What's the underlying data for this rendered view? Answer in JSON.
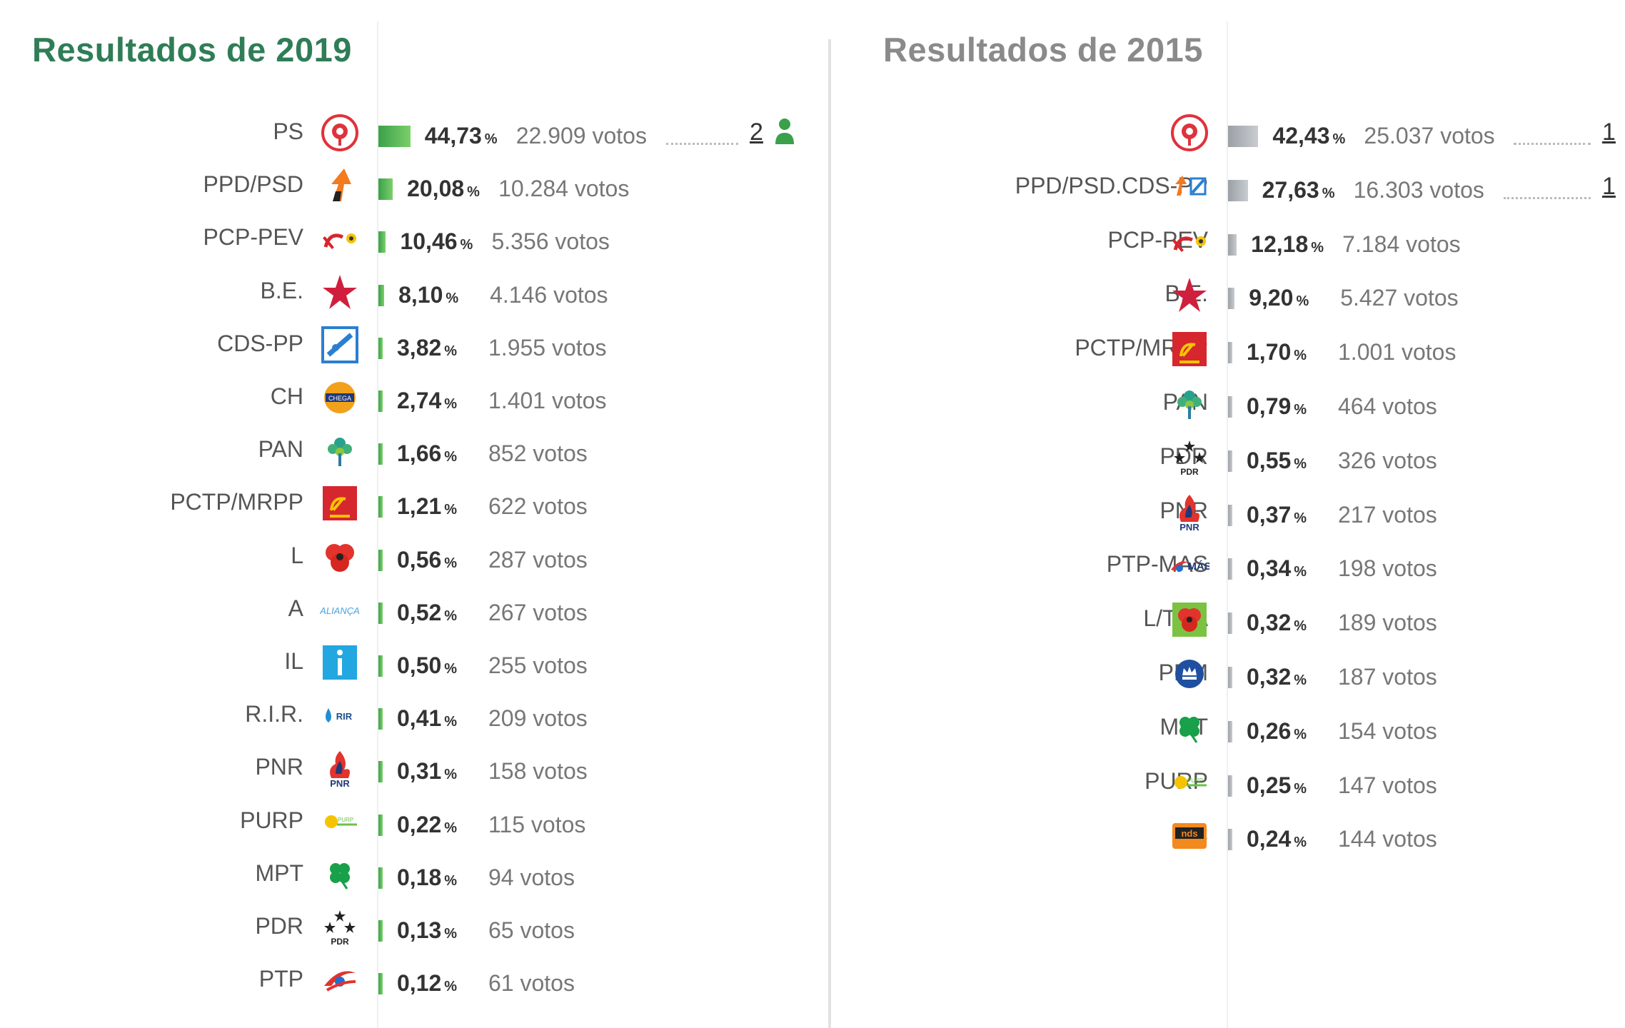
{
  "results_2019": {
    "title": "Resultados de 2019",
    "rows": [
      {
        "party": "PS",
        "pct": "44,73",
        "votes": "22.909 votos",
        "seats": "2",
        "share": 44.73,
        "logo": "ps-rose-icon"
      },
      {
        "party": "PPD/PSD",
        "pct": "20,08",
        "votes": "10.284 votos",
        "share": 20.08,
        "logo": "psd-arrow-icon"
      },
      {
        "party": "PCP-PEV",
        "pct": "10,46",
        "votes": "5.356 votos",
        "share": 10.46,
        "logo": "hammer-sickle-sunflower-icon"
      },
      {
        "party": "B.E.",
        "pct": "8,10",
        "votes": "4.146 votos",
        "share": 8.1,
        "logo": "red-star-icon"
      },
      {
        "party": "CDS-PP",
        "pct": "3,82",
        "votes": "1.955 votos",
        "share": 3.82,
        "logo": "cds-square-icon"
      },
      {
        "party": "CH",
        "pct": "2,74",
        "votes": "1.401 votos",
        "share": 2.74,
        "logo": "chega-badge-icon"
      },
      {
        "party": "PAN",
        "pct": "1,66",
        "votes": "852 votos",
        "share": 1.66,
        "logo": "tree-icon"
      },
      {
        "party": "PCTP/MRPP",
        "pct": "1,21",
        "votes": "622 votos",
        "share": 1.21,
        "logo": "red-square-hammer-sickle-icon"
      },
      {
        "party": "L",
        "pct": "0,56",
        "votes": "287 votos",
        "share": 0.56,
        "logo": "poppy-icon"
      },
      {
        "party": "A",
        "pct": "0,52",
        "votes": "267 votos",
        "share": 0.52,
        "logo": "alianca-wordmark-icon"
      },
      {
        "party": "IL",
        "pct": "0,50",
        "votes": "255 votos",
        "share": 0.5,
        "logo": "il-blue-square-icon"
      },
      {
        "party": "R.I.R.",
        "pct": "0,41",
        "votes": "209 votos",
        "share": 0.41,
        "logo": "rir-drop-icon"
      },
      {
        "party": "PNR",
        "pct": "0,31",
        "votes": "158 votos",
        "share": 0.31,
        "logo": "pnr-flame-icon"
      },
      {
        "party": "PURP",
        "pct": "0,22",
        "votes": "115 votos",
        "share": 0.22,
        "logo": "purp-sun-icon"
      },
      {
        "party": "MPT",
        "pct": "0,18",
        "votes": "94 votos",
        "share": 0.18,
        "logo": "clover-icon"
      },
      {
        "party": "PDR",
        "pct": "0,13",
        "votes": "65 votos",
        "share": 0.13,
        "logo": "pdr-stars-icon"
      },
      {
        "party": "PTP",
        "pct": "0,12",
        "votes": "61 votos",
        "share": 0.12,
        "logo": "ptp-swoosh-icon"
      }
    ]
  },
  "results_2015": {
    "title": "Resultados de 2015",
    "rows": [
      {
        "party": "PS",
        "pct": "42,43",
        "votes": "25.037 votos",
        "seats": "1",
        "share": 42.43,
        "logo": "ps-rose-icon"
      },
      {
        "party": "PPD/PSD.CDS-PP",
        "pct": "27,63",
        "votes": "16.303 votos",
        "seats": "1",
        "share": 27.63,
        "logo": "paf-coalition-icon"
      },
      {
        "party": "PCP-PEV",
        "pct": "12,18",
        "votes": "7.184 votos",
        "share": 12.18,
        "logo": "hammer-sickle-sunflower-icon"
      },
      {
        "party": "B.E.",
        "pct": "9,20",
        "votes": "5.427 votos",
        "share": 9.2,
        "logo": "red-star-icon"
      },
      {
        "party": "PCTP/MRPP",
        "pct": "1,70",
        "votes": "1.001 votos",
        "share": 1.7,
        "logo": "red-square-hammer-sickle-icon"
      },
      {
        "party": "PAN",
        "pct": "0,79",
        "votes": "464 votos",
        "share": 0.79,
        "logo": "tree-icon"
      },
      {
        "party": "PDR",
        "pct": "0,55",
        "votes": "326 votos",
        "share": 0.55,
        "logo": "pdr-stars-icon"
      },
      {
        "party": "PNR",
        "pct": "0,37",
        "votes": "217 votos",
        "share": 0.37,
        "logo": "pnr-flame-icon"
      },
      {
        "party": "PTP-MAS",
        "pct": "0,34",
        "votes": "198 votos",
        "share": 0.34,
        "logo": "ptp-mas-icon"
      },
      {
        "party": "L/TDA",
        "pct": "0,32",
        "votes": "189 votos",
        "share": 0.32,
        "logo": "poppy-green-square-icon"
      },
      {
        "party": "PPM",
        "pct": "0,32",
        "votes": "187 votos",
        "share": 0.32,
        "logo": "ppm-crown-icon"
      },
      {
        "party": "MPT",
        "pct": "0,26",
        "votes": "154 votos",
        "share": 0.26,
        "logo": "clover-icon"
      },
      {
        "party": "PURP",
        "pct": "0,25",
        "votes": "147 votos",
        "share": 0.25,
        "logo": "purp-sun-icon"
      },
      {
        "party": "NC",
        "pct": "0,24",
        "votes": "144 votos",
        "share": 0.24,
        "logo": "nc-orange-icon"
      }
    ]
  },
  "percent_sign": "%",
  "colors": {
    "title_2019": "#2f7d57",
    "title_2015": "#8a8a8a",
    "bar_2019": "#3aa04a",
    "bar_2015": "#9aa0a6",
    "seat_icon": "#3aa04a"
  }
}
